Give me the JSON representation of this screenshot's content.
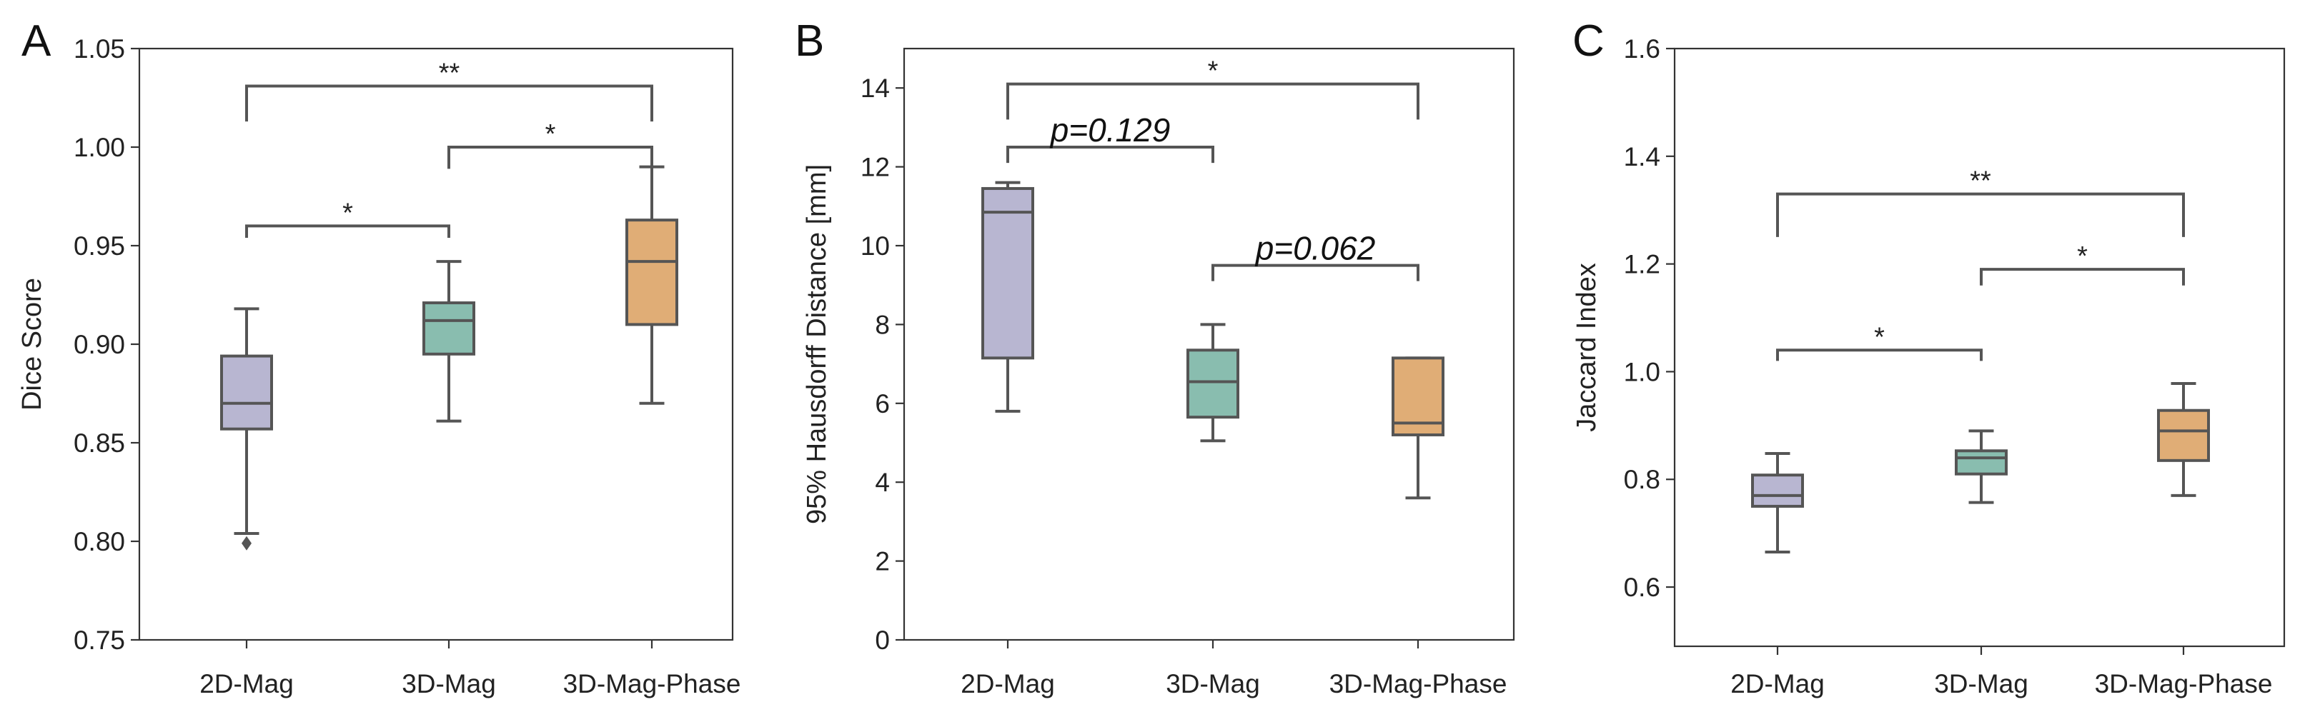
{
  "colors": {
    "2D-Mag": "#b8b6d1",
    "3D-Mag": "#89bdaf",
    "3D-Mag-Phase": "#e0ad76"
  },
  "chart_data": [
    {
      "type": "box",
      "panel": "A",
      "ylabel": "Dice Score",
      "ylim": [
        0.75,
        1.05
      ],
      "yticks": [
        "0.75",
        "0.80",
        "0.85",
        "0.90",
        "0.95",
        "1.00",
        "1.05"
      ],
      "categories": [
        "2D-Mag",
        "3D-Mag",
        "3D-Mag-Phase"
      ],
      "boxes": [
        {
          "name": "2D-Mag",
          "whislo": 0.804,
          "q1": 0.857,
          "med": 0.87,
          "q3": 0.894,
          "whishi": 0.918,
          "fliers": [
            0.799
          ]
        },
        {
          "name": "3D-Mag",
          "whislo": 0.861,
          "q1": 0.895,
          "med": 0.912,
          "q3": 0.921,
          "whishi": 0.942,
          "fliers": []
        },
        {
          "name": "3D-Mag-Phase",
          "whislo": 0.87,
          "q1": 0.91,
          "med": 0.942,
          "q3": 0.963,
          "whishi": 0.99,
          "fliers": []
        }
      ],
      "annotations": [
        {
          "from": 0,
          "to": 1,
          "y": 0.96,
          "drop": 0.006,
          "text": "*"
        },
        {
          "from": 1,
          "to": 2,
          "y": 1.0,
          "drop": 0.011,
          "text": "*"
        },
        {
          "from": 0,
          "to": 2,
          "y": 1.031,
          "drop": 0.018,
          "text": "**"
        }
      ]
    },
    {
      "type": "box",
      "panel": "B",
      "ylabel": "95% Hausdorff Distance [mm]",
      "ylim": [
        0,
        15
      ],
      "yticks": [
        "0",
        "2",
        "4",
        "6",
        "8",
        "10",
        "12",
        "14"
      ],
      "categories": [
        "2D-Mag",
        "3D-Mag",
        "3D-Mag-Phase"
      ],
      "boxes": [
        {
          "name": "2D-Mag",
          "whislo": 5.8,
          "q1": 7.15,
          "med": 10.85,
          "q3": 11.45,
          "whishi": 11.6,
          "fliers": []
        },
        {
          "name": "3D-Mag",
          "whislo": 5.05,
          "q1": 5.65,
          "med": 6.55,
          "q3": 7.35,
          "whishi": 8.0,
          "fliers": []
        },
        {
          "name": "3D-Mag-Phase",
          "whislo": 3.6,
          "q1": 5.2,
          "med": 5.5,
          "q3": 7.15,
          "whishi": 7.15,
          "fliers": []
        }
      ],
      "annotations": [
        {
          "from": 0,
          "to": 1,
          "y": 12.5,
          "drop": 0.4,
          "text": "p=0.129"
        },
        {
          "from": 1,
          "to": 2,
          "y": 9.5,
          "drop": 0.4,
          "text": "p=0.062"
        },
        {
          "from": 0,
          "to": 2,
          "y": 14.1,
          "drop": 0.9,
          "text": "*"
        }
      ]
    },
    {
      "type": "box",
      "panel": "C",
      "ylabel": "Jaccard Index",
      "ylim": [
        0.49,
        1.6
      ],
      "yticks": [
        "0.6",
        "0.8",
        "1.0",
        "1.2",
        "1.4",
        "1.6"
      ],
      "categories": [
        "2D-Mag",
        "3D-Mag",
        "3D-Mag-Phase"
      ],
      "boxes": [
        {
          "name": "2D-Mag",
          "whislo": 0.665,
          "q1": 0.75,
          "med": 0.77,
          "q3": 0.808,
          "whishi": 0.848,
          "fliers": []
        },
        {
          "name": "3D-Mag",
          "whislo": 0.757,
          "q1": 0.81,
          "med": 0.84,
          "q3": 0.853,
          "whishi": 0.89,
          "fliers": []
        },
        {
          "name": "3D-Mag-Phase",
          "whislo": 0.77,
          "q1": 0.835,
          "med": 0.89,
          "q3": 0.928,
          "whishi": 0.978,
          "fliers": []
        }
      ],
      "annotations": [
        {
          "from": 0,
          "to": 1,
          "y": 1.04,
          "drop": 0.02,
          "text": "*"
        },
        {
          "from": 1,
          "to": 2,
          "y": 1.19,
          "drop": 0.03,
          "text": "*"
        },
        {
          "from": 0,
          "to": 2,
          "y": 1.33,
          "drop": 0.08,
          "text": "**"
        }
      ]
    }
  ]
}
